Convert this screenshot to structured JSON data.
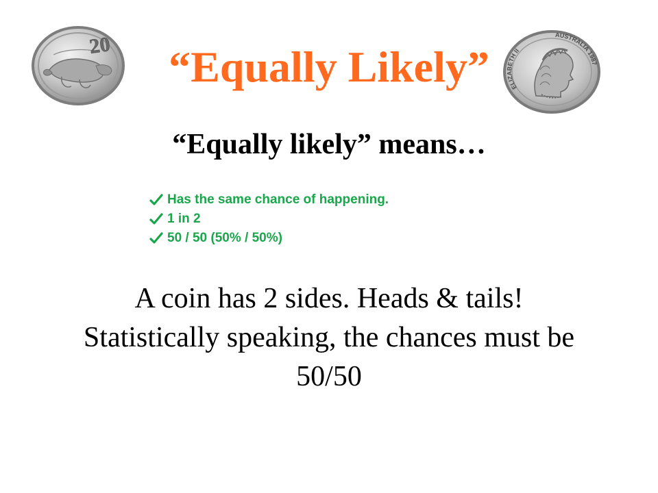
{
  "slide": {
    "title": "“Equally Likely”",
    "subtitle": "“Equally likely” means…",
    "checklist": [
      {
        "icon": "check-icon",
        "text": "Has the same chance of happening."
      },
      {
        "icon": "check-icon",
        "text": "1 in 2"
      },
      {
        "icon": "check-icon",
        "text": "50 / 50 (50% / 50%)"
      }
    ],
    "body_lines": [
      "A coin has 2 sides. Heads & tails!",
      "Statistically speaking, the chances must be",
      "50/50"
    ],
    "coin_left": {
      "icon": "platypus-20-cent-coin",
      "denomination": "20"
    },
    "coin_right": {
      "icon": "queen-portrait-coin",
      "inscription_left": "ELIZABETH II",
      "inscription_right": "AUSTRALIA 1987"
    },
    "colors": {
      "title": "#ff6a1e",
      "checklist": "#1aa64b",
      "text": "#000000",
      "background": "#ffffff"
    }
  }
}
